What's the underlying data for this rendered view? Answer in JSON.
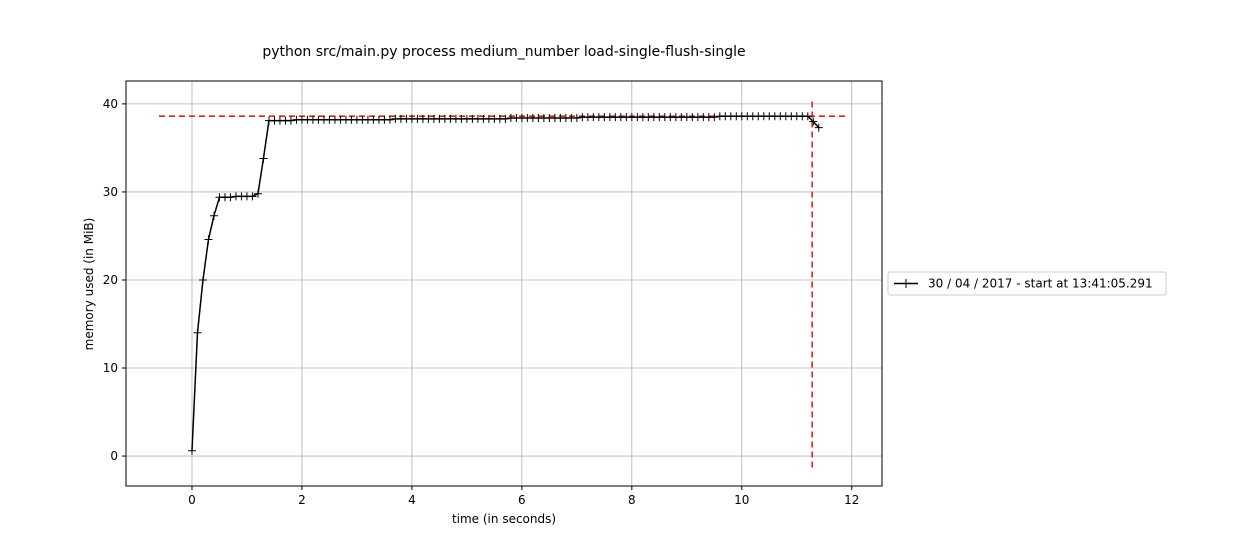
{
  "chart_data": {
    "type": "line",
    "title": "python src/main.py process medium_number load-single-flush-single",
    "xlabel": "time (in seconds)",
    "ylabel": "memory used (in MiB)",
    "xlim": [
      -1.2,
      12.55
    ],
    "ylim": [
      -3.4,
      42.6
    ],
    "xticks": [
      0,
      2,
      4,
      6,
      8,
      10,
      12
    ],
    "yticks": [
      0,
      10,
      20,
      30,
      40
    ],
    "grid": true,
    "legend_position": "outside-right",
    "series": [
      {
        "name": "30 / 04 / 2017 - start at 13:41:05.291",
        "color": "#000000",
        "marker": "+",
        "x": [
          0.0,
          0.1,
          0.2,
          0.3,
          0.4,
          0.5,
          0.6,
          0.7,
          0.8,
          0.9,
          1.0,
          1.1,
          1.2,
          1.3,
          1.4,
          1.5,
          1.6,
          1.7,
          1.8,
          1.9,
          2.0,
          2.1,
          2.2,
          2.3,
          2.4,
          2.5,
          2.6,
          2.7,
          2.8,
          2.9,
          3.0,
          3.1,
          3.2,
          3.3,
          3.4,
          3.5,
          3.6,
          3.7,
          3.8,
          3.9,
          4.0,
          4.1,
          4.2,
          4.3,
          4.4,
          4.5,
          4.6,
          4.7,
          4.8,
          4.9,
          5.0,
          5.1,
          5.2,
          5.3,
          5.4,
          5.5,
          5.6,
          5.7,
          5.8,
          5.9,
          6.0,
          6.1,
          6.2,
          6.3,
          6.4,
          6.5,
          6.6,
          6.7,
          6.8,
          6.9,
          7.0,
          7.1,
          7.2,
          7.3,
          7.4,
          7.5,
          7.6,
          7.7,
          7.8,
          7.9,
          8.0,
          8.1,
          8.2,
          8.3,
          8.4,
          8.5,
          8.6,
          8.7,
          8.8,
          8.9,
          9.0,
          9.1,
          9.2,
          9.3,
          9.4,
          9.5,
          9.6,
          9.7,
          9.8,
          9.9,
          10.0,
          10.1,
          10.2,
          10.3,
          10.4,
          10.5,
          10.6,
          10.7,
          10.8,
          10.9,
          11.0,
          11.1,
          11.2,
          11.3,
          11.4
        ],
        "y": [
          0.6,
          14.0,
          20.0,
          24.6,
          27.3,
          29.4,
          29.4,
          29.4,
          29.5,
          29.5,
          29.5,
          29.5,
          29.8,
          33.8,
          38.1,
          38.1,
          38.1,
          38.1,
          38.1,
          38.2,
          38.2,
          38.2,
          38.2,
          38.2,
          38.2,
          38.2,
          38.2,
          38.2,
          38.2,
          38.2,
          38.2,
          38.2,
          38.2,
          38.2,
          38.2,
          38.2,
          38.2,
          38.3,
          38.3,
          38.3,
          38.3,
          38.3,
          38.3,
          38.3,
          38.3,
          38.3,
          38.3,
          38.3,
          38.3,
          38.3,
          38.3,
          38.3,
          38.3,
          38.3,
          38.3,
          38.3,
          38.3,
          38.3,
          38.4,
          38.4,
          38.4,
          38.4,
          38.4,
          38.4,
          38.4,
          38.4,
          38.4,
          38.4,
          38.4,
          38.4,
          38.4,
          38.5,
          38.5,
          38.5,
          38.5,
          38.5,
          38.5,
          38.5,
          38.5,
          38.5,
          38.5,
          38.5,
          38.5,
          38.5,
          38.5,
          38.5,
          38.5,
          38.5,
          38.5,
          38.5,
          38.5,
          38.5,
          38.5,
          38.5,
          38.5,
          38.5,
          38.6,
          38.6,
          38.6,
          38.6,
          38.6,
          38.6,
          38.6,
          38.6,
          38.6,
          38.6,
          38.6,
          38.6,
          38.6,
          38.6,
          38.6,
          38.6,
          38.6,
          38.0,
          37.3
        ]
      }
    ],
    "reference_lines": [
      {
        "orientation": "horizontal",
        "value": 38.6,
        "from": -0.6,
        "to": 11.95,
        "color": "#d62728",
        "style": "dashed"
      },
      {
        "orientation": "vertical",
        "value": 11.28,
        "from": -1.3,
        "to": 40.4,
        "color": "#d62728",
        "style": "dashed"
      }
    ]
  }
}
